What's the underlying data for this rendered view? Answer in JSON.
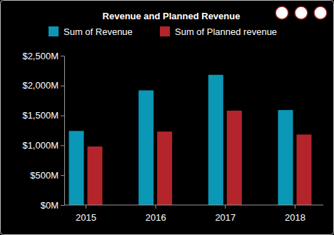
{
  "chart_data": {
    "type": "bar",
    "title": "Revenue and Planned Revenue",
    "categories": [
      "2015",
      "2016",
      "2017",
      "2018"
    ],
    "series": [
      {
        "name": "Sum of Revenue",
        "color": "#0b97b6",
        "values": [
          1240,
          1920,
          2180,
          1590
        ]
      },
      {
        "name": "Sum of Planned revenue",
        "color": "#b3252b",
        "values": [
          980,
          1230,
          1580,
          1180
        ]
      }
    ],
    "ylim": [
      0,
      2500
    ],
    "yticks": [
      {
        "value": 0,
        "label": "$0M"
      },
      {
        "value": 500,
        "label": "$500M"
      },
      {
        "value": 1000,
        "label": "$1,000M"
      },
      {
        "value": 1500,
        "label": "$1,500M"
      },
      {
        "value": 2000,
        "label": "$2,000M"
      },
      {
        "value": 2500,
        "label": "$2,500M"
      }
    ],
    "grid": false,
    "legend": "top"
  }
}
